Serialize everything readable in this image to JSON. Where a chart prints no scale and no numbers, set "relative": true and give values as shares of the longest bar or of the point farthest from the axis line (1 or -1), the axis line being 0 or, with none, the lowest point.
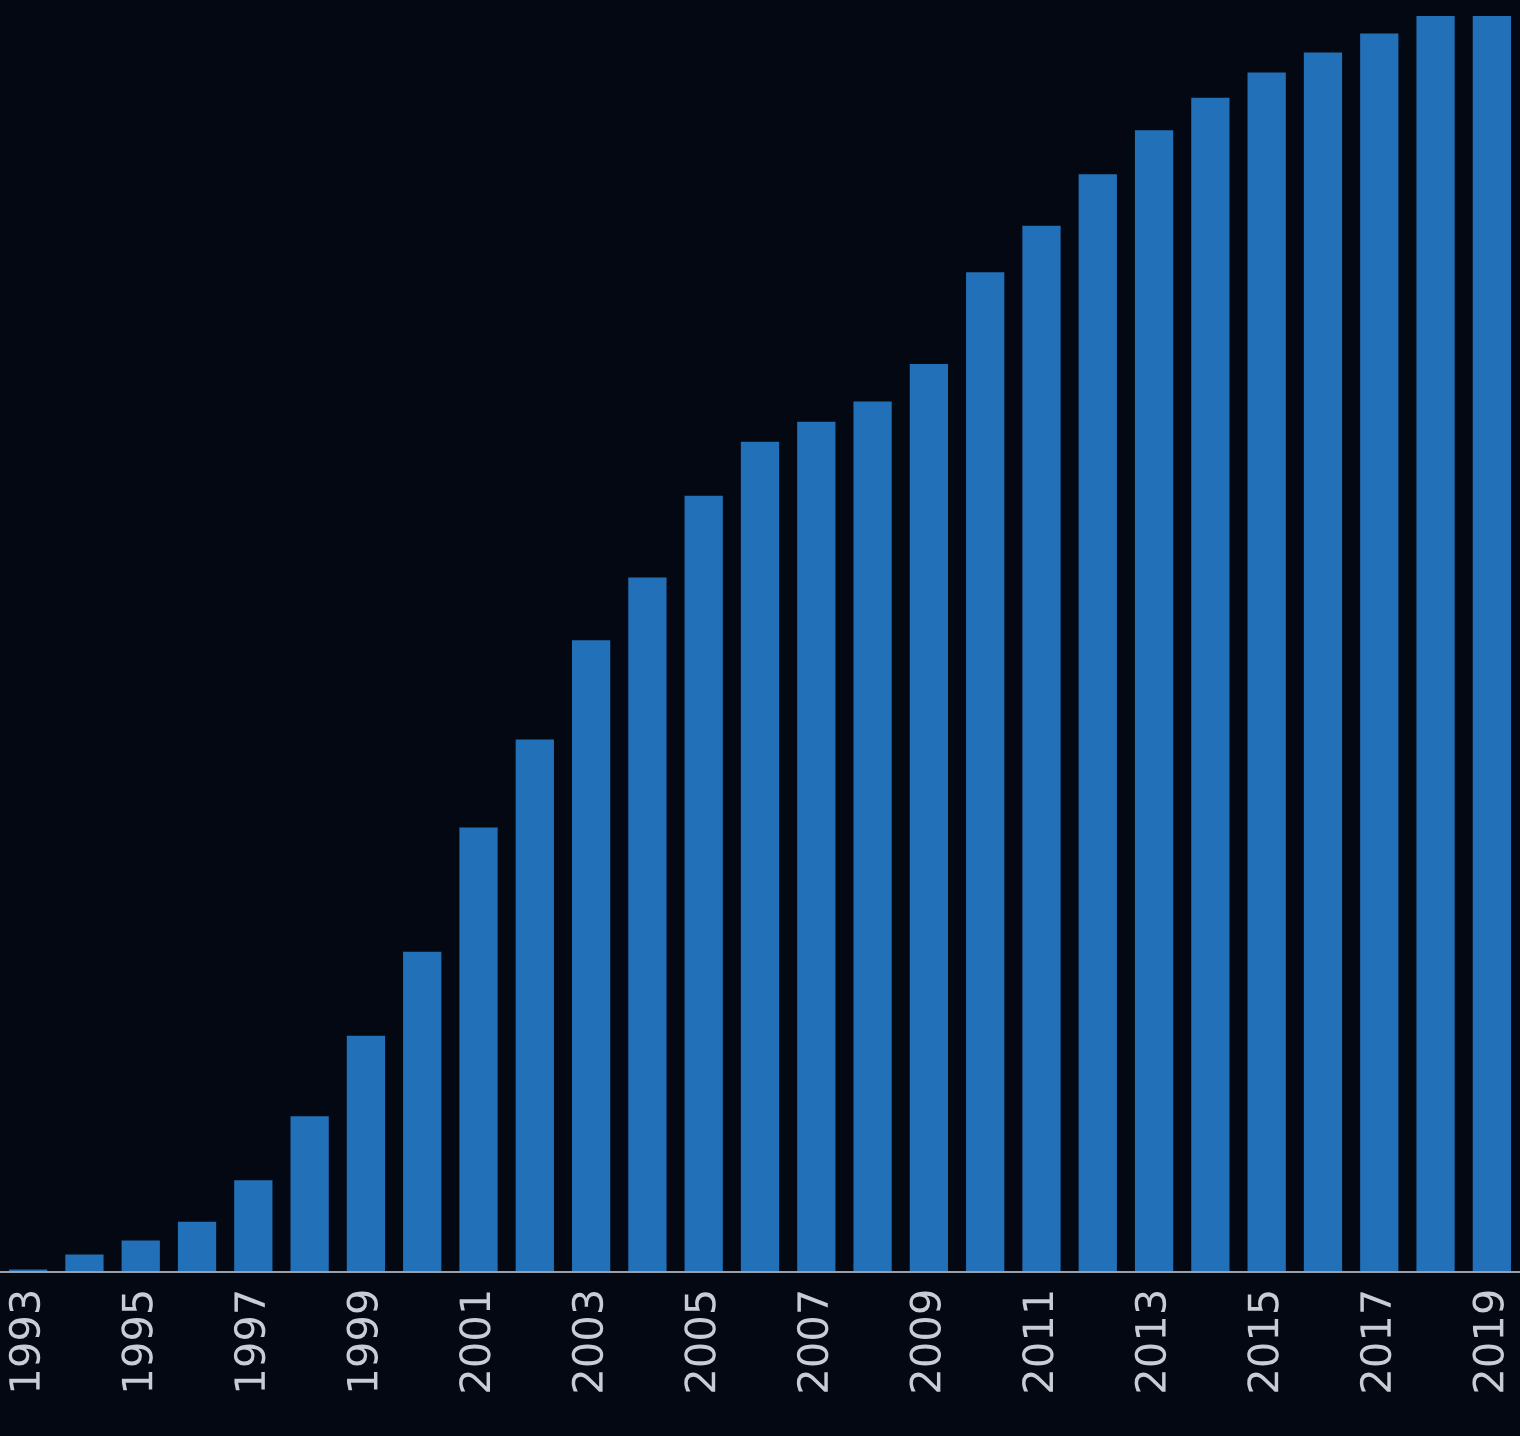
{
  "chart_data": {
    "type": "bar",
    "relative": true,
    "categories": [
      "1993",
      null,
      "1995",
      null,
      "1997",
      null,
      "1999",
      null,
      "2001",
      null,
      "2003",
      null,
      "2005",
      null,
      "2007",
      null,
      "2009",
      null,
      "2011",
      null,
      "2013",
      null,
      "2015",
      null,
      "2017",
      null,
      "2019"
    ],
    "values": [
      0.002,
      0.014,
      0.025,
      0.04,
      0.073,
      0.124,
      0.188,
      0.255,
      0.354,
      0.424,
      0.503,
      0.553,
      0.618,
      0.661,
      0.677,
      0.693,
      0.723,
      0.796,
      0.833,
      0.874,
      0.909,
      0.935,
      0.955,
      0.971,
      0.986,
      1,
      1
    ],
    "color": "#2270b8",
    "grid": false,
    "legend": false
  }
}
